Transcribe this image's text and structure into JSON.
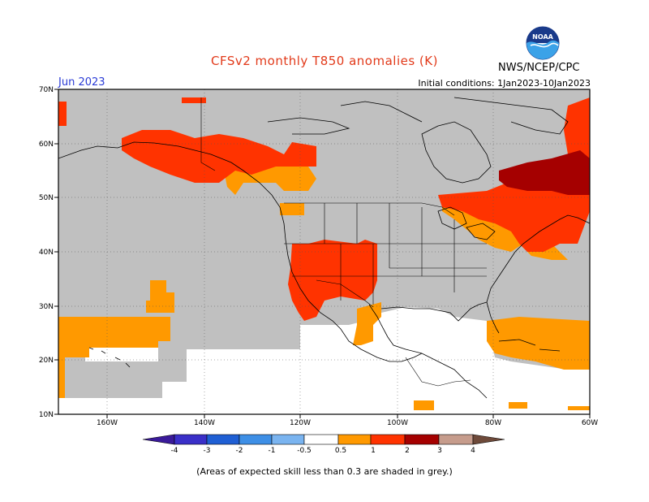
{
  "title": "CFSv2 monthly T850 anomalies (K)",
  "month": "Jun 2023",
  "initial_conditions": "Initial conditions: 1Jan2023-10Jan2023",
  "agency": "NWS/NCEP/CPC",
  "logo_text": "NOAA",
  "footnote": "(Areas of expected skill less than 0.3 are shaded in grey.)",
  "map": {
    "lat_labels": [
      "70N",
      "60N",
      "50N",
      "40N",
      "30N",
      "20N",
      "10N"
    ],
    "lon_labels": [
      "160W",
      "140W",
      "120W",
      "100W",
      "80W",
      "60W"
    ]
  },
  "colorbar": {
    "labels": [
      "-4",
      "-3",
      "-2",
      "-1",
      "-0.5",
      "0.5",
      "1",
      "2",
      "3",
      "4"
    ],
    "colors": {
      "lt_neg4": "#3a1a9a",
      "neg4_neg3": "#3a2fc8",
      "neg3_neg2": "#1f5fd4",
      "neg2_neg1": "#3e8fe6",
      "neg1_neg05": "#7ab4f0",
      "neutral": "#ffffff",
      "pos05_pos1": "#ff9900",
      "pos1_pos2": "#ff3300",
      "pos2_pos3": "#a50000",
      "pos3_pos4": "#c69c8c",
      "gt_pos4": "#6e4a3a"
    }
  },
  "colors": {
    "grey_low_skill": "#c0c0c0",
    "anomaly_05_1": "#ff9900",
    "anomaly_1_2": "#ff3300",
    "anomaly_2_3": "#a50000"
  }
}
